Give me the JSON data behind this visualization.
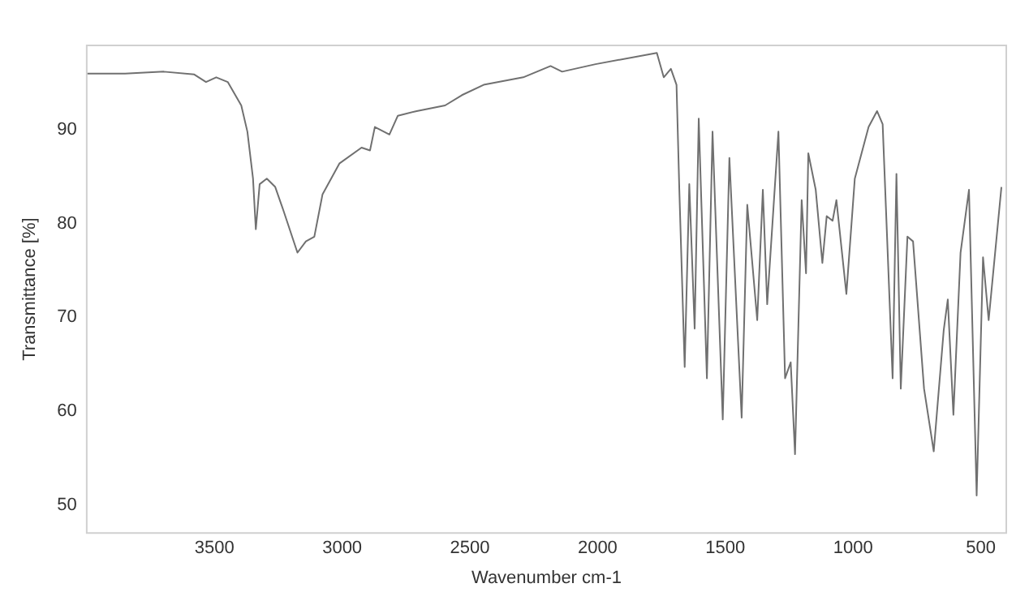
{
  "chart_data": {
    "type": "line",
    "xlabel": "Wavenumber cm-1",
    "ylabel": "Transmittance [%]",
    "x": [
      4000,
      3850,
      3698,
      3579,
      3533,
      3493,
      3448,
      3395,
      3371,
      3349,
      3338,
      3323,
      3295,
      3262,
      3230,
      3175,
      3142,
      3109,
      3077,
      3011,
      2924,
      2891,
      2872,
      2815,
      2782,
      2708,
      2597,
      2531,
      2446,
      2291,
      2184,
      2139,
      2008,
      1768,
      1741,
      1713,
      1691,
      1680,
      1659,
      1641,
      1620,
      1604,
      1572,
      1550,
      1510,
      1484,
      1436,
      1414,
      1375,
      1353,
      1336,
      1292,
      1266,
      1244,
      1227,
      1201,
      1184,
      1175,
      1146,
      1120,
      1103,
      1080,
      1065,
      1026,
      993,
      939,
      906,
      884,
      845,
      830,
      813,
      787,
      765,
      722,
      684,
      645,
      629,
      607,
      579,
      546,
      516,
      491,
      469,
      419
    ],
    "series": [
      {
        "color": "#707070",
        "values": [
          96.0,
          96.0,
          96.2,
          95.9,
          95.1,
          95.6,
          95.1,
          92.6,
          89.8,
          84.8,
          79.4,
          84.2,
          84.8,
          83.9,
          81.4,
          76.9,
          78.1,
          78.6,
          83.1,
          86.4,
          88.1,
          87.8,
          90.3,
          89.5,
          91.5,
          92.0,
          92.6,
          93.7,
          94.8,
          95.6,
          96.8,
          96.2,
          97.0,
          98.2,
          95.6,
          96.5,
          94.8,
          83.6,
          64.7,
          84.2,
          68.8,
          91.2,
          63.5,
          89.8,
          59.1,
          87.0,
          59.3,
          82.0,
          69.7,
          83.6,
          71.4,
          89.8,
          63.5,
          65.2,
          55.4,
          82.5,
          74.7,
          87.5,
          83.6,
          75.8,
          80.8,
          80.3,
          82.5,
          72.5,
          84.8,
          90.3,
          92.0,
          90.6,
          63.5,
          85.3,
          62.4,
          78.6,
          78.1,
          62.4,
          55.7,
          68.6,
          71.9,
          59.6,
          76.9,
          83.6,
          51.0,
          76.4,
          69.7,
          83.9
        ]
      }
    ],
    "xlim": [
      4000,
      400
    ],
    "xticks": [
      3500,
      3000,
      2500,
      2000,
      1500,
      1000,
      500
    ],
    "ylim": [
      47,
      99
    ],
    "yticks": [
      50,
      60,
      70,
      80,
      90
    ],
    "grid": false,
    "legend": false,
    "marker": "none",
    "line_style": "solid"
  }
}
